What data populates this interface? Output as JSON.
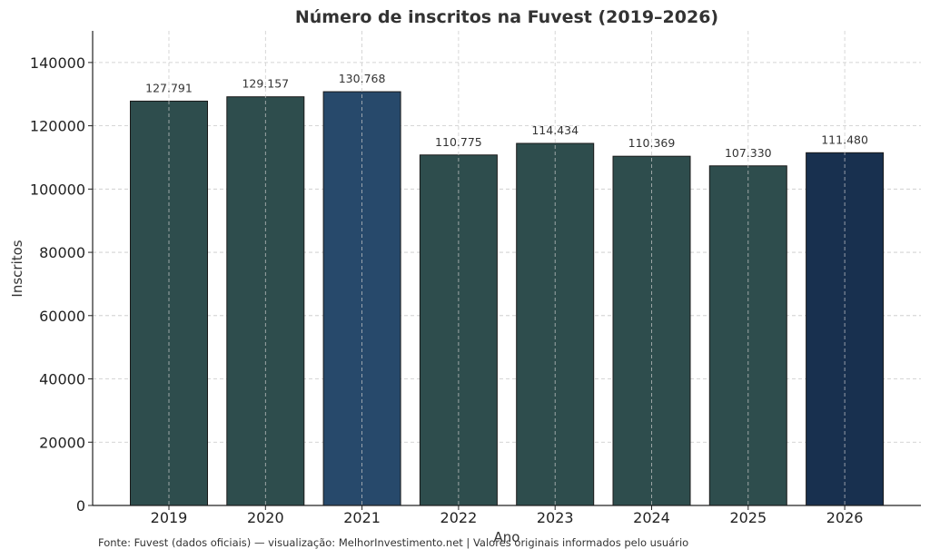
{
  "chart_data": {
    "type": "bar",
    "title": "Número de inscritos na Fuvest (2019–2026)",
    "xlabel": "Ano",
    "ylabel": "Inscritos",
    "categories": [
      "2019",
      "2020",
      "2021",
      "2022",
      "2023",
      "2024",
      "2025",
      "2026"
    ],
    "values": [
      127791,
      129157,
      130768,
      110775,
      114434,
      110369,
      107330,
      111480
    ],
    "value_labels": [
      "127.791",
      "129.157",
      "130.768",
      "110.775",
      "114.434",
      "110.369",
      "107.330",
      "111.480"
    ],
    "colors": [
      "#2e4d4d",
      "#2e4d4d",
      "#27496b",
      "#2e4d4d",
      "#2e4d4d",
      "#2e4d4d",
      "#2e4d4d",
      "#18304f"
    ],
    "yticks": [
      0,
      20000,
      40000,
      60000,
      80000,
      100000,
      120000,
      140000
    ],
    "ylim": [
      0,
      150000
    ],
    "grid": true,
    "legend": "none"
  },
  "source_note": "Fonte: Fuvest (dados oficiais) — visualização: MelhorInvestimento.net | Valores originais informados pelo usuário"
}
